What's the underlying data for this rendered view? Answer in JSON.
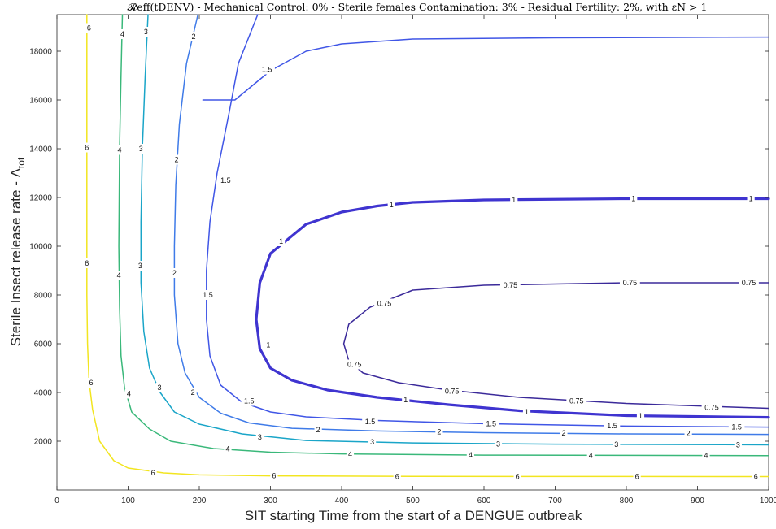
{
  "chart_data": {
    "type": "contour",
    "title": "𝓡eff(tDENV) - Mechanical Control: 0% - Sterile females Contamination: 3% - Residual Fertility: 2%, with εN > 1",
    "xlabel": "SIT starting Time from the start of a DENGUE outbreak",
    "ylabel": "Sterile Insect release rate - Λ",
    "ylabel_sub": "tot",
    "xlim": [
      0,
      1000
    ],
    "ylim": [
      0,
      19500
    ],
    "xticks": [
      0,
      100,
      200,
      300,
      400,
      500,
      600,
      700,
      800,
      900,
      1000
    ],
    "yticks": [
      2000,
      4000,
      6000,
      8000,
      10000,
      12000,
      14000,
      16000,
      18000
    ],
    "grid": false,
    "levels": [
      {
        "level": 6,
        "label": "6",
        "color": "#f2e520",
        "width": 1.5,
        "points": [
          [
            42,
            19500
          ],
          [
            42,
            17000
          ],
          [
            42,
            14000
          ],
          [
            42,
            11000
          ],
          [
            42,
            8000
          ],
          [
            43,
            6000
          ],
          [
            45,
            4500
          ],
          [
            50,
            3300
          ],
          [
            60,
            2000
          ],
          [
            80,
            1200
          ],
          [
            100,
            900
          ],
          [
            150,
            700
          ],
          [
            200,
            620
          ],
          [
            300,
            580
          ],
          [
            500,
            560
          ],
          [
            700,
            555
          ],
          [
            1000,
            550
          ]
        ],
        "labels": [
          [
            45,
            18950
          ],
          [
            42,
            14050
          ],
          [
            42,
            9300
          ],
          [
            48,
            4400
          ],
          [
            135,
            700
          ],
          [
            305,
            580
          ],
          [
            478,
            557
          ],
          [
            647,
            556
          ],
          [
            815,
            555
          ],
          [
            982,
            551
          ]
        ]
      },
      {
        "level": 4,
        "label": "4",
        "color": "#3ab87a",
        "width": 1.5,
        "points": [
          [
            92,
            19500
          ],
          [
            90,
            17000
          ],
          [
            88,
            14000
          ],
          [
            87,
            10000
          ],
          [
            88,
            7500
          ],
          [
            90,
            5500
          ],
          [
            95,
            4200
          ],
          [
            105,
            3200
          ],
          [
            130,
            2500
          ],
          [
            160,
            2000
          ],
          [
            220,
            1700
          ],
          [
            300,
            1550
          ],
          [
            400,
            1480
          ],
          [
            600,
            1430
          ],
          [
            800,
            1420
          ],
          [
            1000,
            1410
          ]
        ],
        "labels": [
          [
            92,
            18700
          ],
          [
            88,
            13950
          ],
          [
            87,
            8800
          ],
          [
            101,
            3950
          ],
          [
            240,
            1680
          ],
          [
            412,
            1470
          ],
          [
            581,
            1430
          ],
          [
            750,
            1420
          ],
          [
            912,
            1410
          ]
        ]
      },
      {
        "level": 3,
        "label": "3",
        "color": "#1aa5c8",
        "width": 1.5,
        "points": [
          [
            128,
            19500
          ],
          [
            124,
            17000
          ],
          [
            120,
            14000
          ],
          [
            118,
            11000
          ],
          [
            118,
            8500
          ],
          [
            122,
            6500
          ],
          [
            130,
            5000
          ],
          [
            145,
            4000
          ],
          [
            165,
            3200
          ],
          [
            200,
            2700
          ],
          [
            260,
            2300
          ],
          [
            350,
            2030
          ],
          [
            500,
            1930
          ],
          [
            700,
            1880
          ],
          [
            1000,
            1850
          ]
        ],
        "labels": [
          [
            125,
            18800
          ],
          [
            118,
            14000
          ],
          [
            117,
            9200
          ],
          [
            144,
            4200
          ],
          [
            285,
            2170
          ],
          [
            443,
            1960
          ],
          [
            620,
            1890
          ],
          [
            786,
            1870
          ],
          [
            957,
            1850
          ]
        ]
      },
      {
        "level": 2,
        "label": "2",
        "color": "#3f7be8",
        "width": 1.5,
        "points": [
          [
            198,
            19500
          ],
          [
            182,
            17500
          ],
          [
            172,
            15000
          ],
          [
            167,
            12500
          ],
          [
            165,
            10000
          ],
          [
            165,
            8000
          ],
          [
            170,
            6000
          ],
          [
            180,
            4800
          ],
          [
            200,
            3800
          ],
          [
            230,
            3150
          ],
          [
            270,
            2750
          ],
          [
            330,
            2530
          ],
          [
            450,
            2420
          ],
          [
            600,
            2350
          ],
          [
            800,
            2300
          ],
          [
            1000,
            2280
          ]
        ],
        "labels": [
          [
            192,
            18600
          ],
          [
            168,
            13550
          ],
          [
            165,
            8900
          ],
          [
            191,
            4000
          ],
          [
            367,
            2470
          ],
          [
            537,
            2380
          ],
          [
            712,
            2330
          ],
          [
            887,
            2310
          ]
        ]
      },
      {
        "level": 1.5,
        "label": "1.5",
        "color": "#4056e6",
        "width": 1.5,
        "points": [
          [
            282,
            19500
          ],
          [
            255,
            17500
          ],
          [
            242,
            15500
          ],
          [
            225,
            13000
          ],
          [
            215,
            11000
          ],
          [
            210,
            9000
          ],
          [
            210,
            7000
          ],
          [
            215,
            5500
          ],
          [
            230,
            4300
          ],
          [
            260,
            3600
          ],
          [
            300,
            3200
          ],
          [
            350,
            3000
          ],
          [
            450,
            2850
          ],
          [
            600,
            2720
          ],
          [
            800,
            2620
          ],
          [
            1000,
            2580
          ]
        ],
        "labels": [
          [
            295,
            17250
          ],
          [
            237,
            12700
          ],
          [
            212,
            8000
          ],
          [
            270,
            3650
          ],
          [
            440,
            2800
          ],
          [
            610,
            2720
          ],
          [
            780,
            2630
          ],
          [
            955,
            2590
          ]
        ]
      },
      {
        "level": 1.5,
        "label": "1.5",
        "color": "#4056e6",
        "width": 1.5,
        "points": [
          [
            205,
            16000
          ],
          [
            250,
            16000
          ],
          [
            300,
            17200
          ],
          [
            350,
            18000
          ],
          [
            400,
            18300
          ],
          [
            500,
            18500
          ],
          [
            700,
            18550
          ],
          [
            1000,
            18580
          ]
        ],
        "labels": []
      },
      {
        "level": 1,
        "label": "1",
        "color": "#3f34d0",
        "width": 3.2,
        "points": [
          [
            1000,
            11950
          ],
          [
            800,
            11950
          ],
          [
            600,
            11900
          ],
          [
            500,
            11800
          ],
          [
            450,
            11650
          ],
          [
            400,
            11400
          ],
          [
            350,
            10900
          ],
          [
            300,
            9700
          ],
          [
            285,
            8500
          ],
          [
            280,
            7000
          ],
          [
            285,
            5800
          ],
          [
            300,
            5000
          ],
          [
            330,
            4500
          ],
          [
            380,
            4100
          ],
          [
            450,
            3800
          ],
          [
            550,
            3500
          ],
          [
            650,
            3250
          ],
          [
            800,
            3050
          ],
          [
            1000,
            2980
          ]
        ],
        "labels": [
          [
            470,
            11700
          ],
          [
            642,
            11900
          ],
          [
            810,
            11950
          ],
          [
            975,
            11950
          ],
          [
            315,
            10200
          ],
          [
            297,
            5950
          ],
          [
            490,
            3700
          ],
          [
            660,
            3200
          ],
          [
            820,
            3030
          ]
        ]
      },
      {
        "level": 0.75,
        "label": "0.75",
        "color": "#3b2a9a",
        "width": 1.5,
        "points": [
          [
            1000,
            8500
          ],
          [
            900,
            8500
          ],
          [
            800,
            8500
          ],
          [
            700,
            8450
          ],
          [
            600,
            8400
          ],
          [
            500,
            8200
          ],
          [
            440,
            7500
          ],
          [
            410,
            6800
          ],
          [
            403,
            6000
          ],
          [
            410,
            5300
          ],
          [
            430,
            4800
          ],
          [
            480,
            4400
          ],
          [
            550,
            4100
          ],
          [
            650,
            3800
          ],
          [
            800,
            3550
          ],
          [
            1000,
            3350
          ]
        ],
        "labels": [
          [
            460,
            7650
          ],
          [
            637,
            8400
          ],
          [
            805,
            8500
          ],
          [
            972,
            8500
          ],
          [
            418,
            5150
          ],
          [
            555,
            4050
          ],
          [
            730,
            3650
          ],
          [
            920,
            3380
          ]
        ]
      }
    ]
  }
}
